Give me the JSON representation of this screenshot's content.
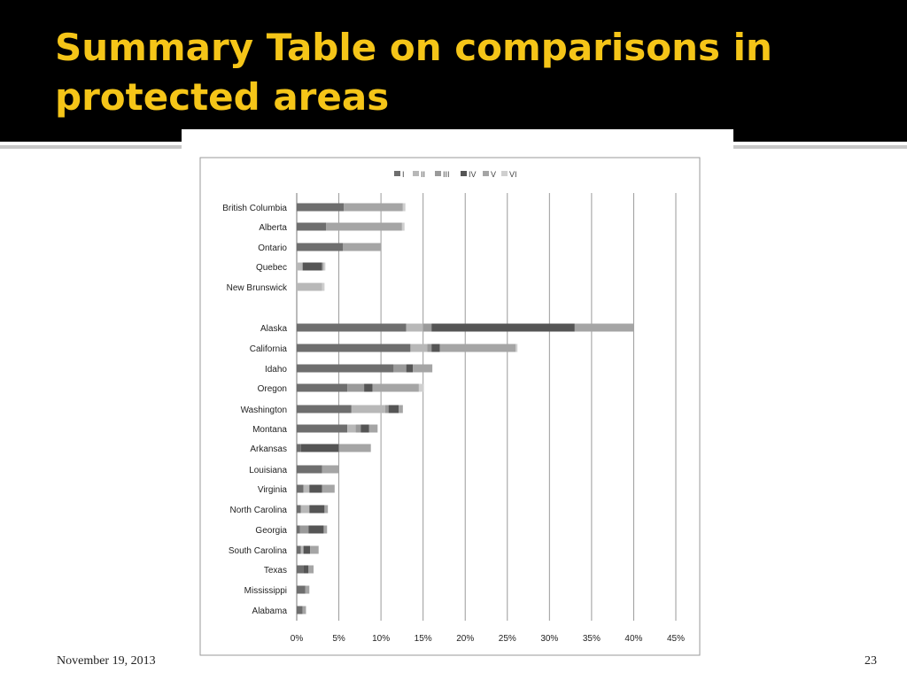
{
  "slide": {
    "title_line1": "Summary Table on comparisons in",
    "title_line2": "protected areas",
    "footer_date": "November 19, 2013",
    "page_number": "23",
    "title_color": "#f5c518"
  },
  "chart_data": {
    "type": "bar",
    "orientation": "horizontal",
    "stacked": true,
    "categories": [
      "British Columbia",
      "Alberta",
      "Ontario",
      "Quebec",
      "New Brunswick",
      "Alaska",
      "California",
      "Idaho",
      "Oregon",
      "Washington",
      "Montana",
      "Arkansas",
      "Louisiana",
      "Virginia",
      "North Carolina",
      "Georgia",
      "South Carolina",
      "Texas",
      "Mississippi",
      "Alabama"
    ],
    "series": [
      {
        "name": "I",
        "color": "#6e6e6e",
        "values": [
          5.6,
          3.5,
          5.5,
          0.0,
          0.0,
          13.0,
          13.5,
          11.5,
          6.0,
          6.5,
          6.0,
          0.5,
          3.0,
          0.8,
          0.5,
          0.4,
          0.5,
          0.8,
          1.0,
          0.7
        ]
      },
      {
        "name": "II",
        "color": "#b8b8b8",
        "values": [
          0.0,
          0.0,
          0.0,
          0.7,
          3.0,
          2.0,
          2.0,
          0.0,
          0.0,
          4.0,
          1.0,
          0.0,
          0.0,
          0.7,
          1.0,
          0.0,
          0.3,
          0.0,
          0.0,
          0.0
        ]
      },
      {
        "name": "III",
        "color": "#9a9a9a",
        "values": [
          0.0,
          0.0,
          0.0,
          0.0,
          0.0,
          1.0,
          0.5,
          1.5,
          2.0,
          0.4,
          0.6,
          0.0,
          0.0,
          0.0,
          0.0,
          1.0,
          0.0,
          0.0,
          0.0,
          0.0
        ]
      },
      {
        "name": "IV",
        "color": "#555555",
        "values": [
          0.0,
          0.0,
          0.0,
          2.3,
          0.0,
          17.0,
          1.0,
          0.8,
          1.0,
          1.2,
          1.0,
          4.5,
          0.0,
          1.5,
          1.8,
          1.8,
          0.8,
          0.6,
          0.0,
          0.0
        ]
      },
      {
        "name": "V",
        "color": "#a5a5a5",
        "values": [
          7.0,
          9.0,
          4.5,
          0.2,
          0.0,
          7.0,
          9.0,
          2.3,
          5.5,
          0.5,
          1.0,
          3.8,
          2.0,
          1.5,
          0.4,
          0.4,
          1.0,
          0.6,
          0.5,
          0.4
        ]
      },
      {
        "name": "VI",
        "color": "#cfcfcf",
        "values": [
          0.3,
          0.3,
          0.0,
          0.2,
          0.3,
          0.0,
          0.2,
          0.0,
          0.6,
          0.0,
          0.0,
          0.0,
          0.0,
          0.0,
          0.0,
          0.0,
          0.0,
          0.0,
          0.0,
          0.0
        ]
      }
    ],
    "xlim": [
      0,
      45
    ],
    "xticks": [
      "0%",
      "5%",
      "10%",
      "15%",
      "20%",
      "25%",
      "30%",
      "35%",
      "40%",
      "45%"
    ],
    "grid": true,
    "legend_position": "top"
  }
}
